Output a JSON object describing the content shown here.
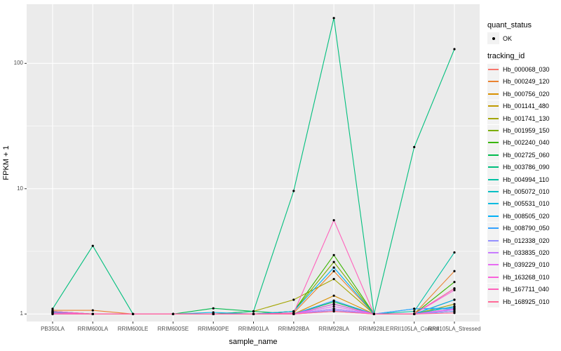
{
  "figure": {
    "panel_bg": "#EBEBEB",
    "grid_color": "#FFFFFF",
    "tick_color": "#333333",
    "tick_label_color": "#4D4D4D",
    "legend_key_bg": "#F2F2F2",
    "point_color": "#000000"
  },
  "chart_data": {
    "type": "line",
    "title": "",
    "xlabel": "sample_name",
    "ylabel": "FPKM + 1",
    "y_scale": "log10",
    "y_ticks": [
      1,
      10,
      100
    ],
    "y_tick_labels": [
      "1",
      "10",
      "100"
    ],
    "y_minor_breaks": [
      3.162,
      31.62
    ],
    "ylim_px_note": "log axis, 1 decade = 178.5px",
    "grid": true,
    "legend_position": "right",
    "categories": [
      "PB350LA",
      "RRIM600LA",
      "RRIM600LE",
      "RRIM600SE",
      "RRIM600PE",
      "RRIM901LA",
      "RRIM928BA",
      "RRIM928LA",
      "RRIM928LE",
      "RRII105LA_Control",
      "RRII105LA_Stressed"
    ],
    "series": [
      {
        "name": "Hb_000068_030",
        "color": "#F8766D",
        "values": [
          1.02,
          1.0,
          1.0,
          1.0,
          1.0,
          1.0,
          1.0,
          1.05,
          1.0,
          1.0,
          1.1
        ]
      },
      {
        "name": "Hb_000249_120",
        "color": "#EA8331",
        "values": [
          1.07,
          1.07,
          1.0,
          1.0,
          1.0,
          1.0,
          1.02,
          2.2,
          1.0,
          1.0,
          2.2
        ]
      },
      {
        "name": "Hb_000756_020",
        "color": "#D89000",
        "values": [
          1.05,
          1.0,
          1.0,
          1.0,
          1.0,
          1.0,
          1.0,
          1.4,
          1.0,
          1.0,
          1.3
        ]
      },
      {
        "name": "Hb_001141_480",
        "color": "#C09B00",
        "values": [
          1.03,
          1.0,
          1.0,
          1.0,
          1.0,
          1.0,
          1.0,
          1.2,
          1.0,
          1.0,
          1.15
        ]
      },
      {
        "name": "Hb_001741_130",
        "color": "#A3A500",
        "values": [
          1.04,
          1.0,
          1.0,
          1.0,
          1.0,
          1.05,
          1.3,
          1.9,
          1.0,
          1.0,
          1.2
        ]
      },
      {
        "name": "Hb_001959_150",
        "color": "#7CAE00",
        "values": [
          1.02,
          1.0,
          1.0,
          1.0,
          1.0,
          1.0,
          1.05,
          2.6,
          1.0,
          1.0,
          1.6
        ]
      },
      {
        "name": "Hb_002240_040",
        "color": "#39B600",
        "values": [
          1.0,
          1.0,
          1.0,
          1.0,
          1.0,
          1.0,
          1.05,
          2.95,
          1.0,
          1.0,
          1.8
        ]
      },
      {
        "name": "Hb_002725_060",
        "color": "#00BB4E",
        "values": [
          1.0,
          1.0,
          1.0,
          1.0,
          1.11,
          1.05,
          1.0,
          1.25,
          1.0,
          1.0,
          1.05
        ]
      },
      {
        "name": "Hb_003786_090",
        "color": "#00BF7D",
        "values": [
          1.1,
          3.5,
          1.0,
          1.0,
          1.0,
          1.05,
          9.6,
          230,
          1.0,
          21.5,
          130
        ]
      },
      {
        "name": "Hb_004994_110",
        "color": "#00C1A3",
        "values": [
          1.05,
          1.0,
          1.0,
          1.0,
          1.0,
          1.0,
          1.0,
          1.2,
          1.0,
          1.05,
          3.1
        ]
      },
      {
        "name": "Hb_005072_010",
        "color": "#00BFC4",
        "values": [
          1.02,
          1.0,
          1.0,
          1.0,
          1.0,
          1.0,
          1.0,
          1.1,
          1.0,
          1.0,
          1.15
        ]
      },
      {
        "name": "Hb_005531_010",
        "color": "#00BAE0",
        "values": [
          1.0,
          1.0,
          1.0,
          1.0,
          1.03,
          1.0,
          1.0,
          1.2,
          1.0,
          1.1,
          1.1
        ]
      },
      {
        "name": "Hb_008505_020",
        "color": "#00B0F6",
        "values": [
          1.03,
          1.0,
          1.0,
          1.0,
          1.0,
          1.0,
          1.05,
          2.35,
          1.0,
          1.0,
          1.3
        ]
      },
      {
        "name": "Hb_008790_050",
        "color": "#35A2FF",
        "values": [
          1.05,
          1.0,
          1.0,
          1.0,
          1.0,
          1.0,
          1.0,
          1.28,
          1.0,
          1.1,
          1.12
        ]
      },
      {
        "name": "Hb_012338_020",
        "color": "#9590FF",
        "values": [
          1.0,
          1.0,
          1.0,
          1.0,
          1.0,
          1.0,
          1.0,
          1.07,
          1.0,
          1.0,
          1.05
        ]
      },
      {
        "name": "Hb_033835_020",
        "color": "#C77CFF",
        "values": [
          1.02,
          1.0,
          1.0,
          1.0,
          1.0,
          1.0,
          1.0,
          1.1,
          1.0,
          1.0,
          1.08
        ]
      },
      {
        "name": "Hb_039229_010",
        "color": "#E76BF3",
        "values": [
          1.0,
          1.0,
          1.0,
          1.0,
          1.0,
          1.0,
          1.0,
          1.15,
          1.0,
          1.0,
          1.1
        ]
      },
      {
        "name": "Hb_163268_010",
        "color": "#FA62DB",
        "values": [
          1.02,
          1.0,
          1.0,
          1.0,
          1.0,
          1.0,
          1.0,
          1.2,
          1.0,
          1.0,
          1.55
        ]
      },
      {
        "name": "Hb_167711_040",
        "color": "#FF62BC",
        "values": [
          1.05,
          1.0,
          1.0,
          1.0,
          1.0,
          1.0,
          1.02,
          5.6,
          1.0,
          1.0,
          1.6
        ]
      },
      {
        "name": "Hb_168925_010",
        "color": "#FF6A98",
        "values": [
          1.0,
          1.0,
          1.0,
          1.0,
          1.0,
          1.0,
          1.0,
          1.05,
          1.0,
          1.0,
          1.02
        ]
      }
    ],
    "legend": {
      "quant_status_title": "quant_status",
      "quant_status_items": [
        {
          "label": "OK"
        }
      ],
      "tracking_title": "tracking_id"
    }
  }
}
